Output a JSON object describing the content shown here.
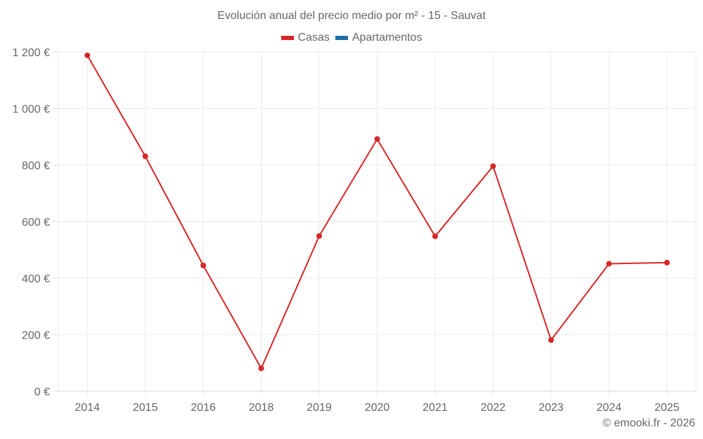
{
  "chart_data": {
    "type": "line",
    "title": "Evolución anual del precio medio por m² - 15 - Sauvat",
    "categories": [
      "2014",
      "2015",
      "2016",
      "2018",
      "2019",
      "2020",
      "2021",
      "2022",
      "2023",
      "2024",
      "2025"
    ],
    "series": [
      {
        "name": "Casas",
        "color": "#d62728",
        "values": [
          1188,
          831,
          445,
          81,
          549,
          892,
          548,
          796,
          181,
          451,
          455
        ]
      },
      {
        "name": "Apartamentos",
        "color": "#1f6fa8",
        "values": []
      }
    ],
    "xlabel": "",
    "ylabel": "",
    "ylim": [
      0,
      1200
    ],
    "yticks": [
      0,
      200,
      400,
      600,
      800,
      1000,
      1200
    ],
    "ytick_labels": [
      "0 €",
      "200 €",
      "400 €",
      "600 €",
      "800 €",
      "1 000 €",
      "1 200 €"
    ],
    "grid": true,
    "legend_position": "top"
  },
  "credit": "© emooki.fr - 2026"
}
